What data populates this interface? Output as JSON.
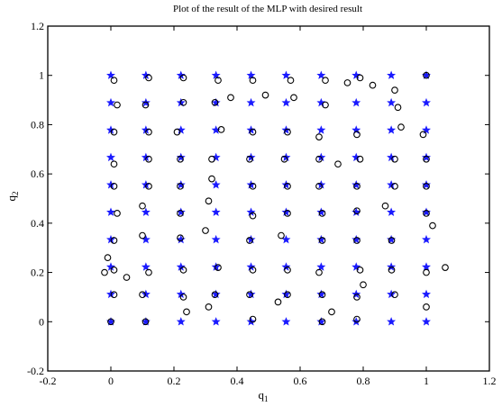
{
  "chart_data": {
    "type": "scatter",
    "title": "Plot of the result of the MLP with desired result",
    "xlabel": {
      "base": "q",
      "sub": "1"
    },
    "ylabel": {
      "base": "q",
      "sub": "2"
    },
    "xlim": [
      -0.2,
      1.2
    ],
    "ylim": [
      -0.2,
      1.2
    ],
    "xticks": [
      -0.2,
      0,
      0.2,
      0.4,
      0.6,
      0.8,
      1,
      1.2
    ],
    "yticks": [
      -0.2,
      0,
      0.2,
      0.4,
      0.6,
      0.8,
      1,
      1.2
    ],
    "xtick_labels": [
      "-0.2",
      "0",
      "0.2",
      "0.4",
      "0.6",
      "0.8",
      "1",
      "1.2"
    ],
    "ytick_labels": [
      "-0.2",
      "0",
      "0.2",
      "0.4",
      "0.6",
      "0.8",
      "1",
      "1.2"
    ],
    "grid": false,
    "legend": "none",
    "series": [
      {
        "marker": "star",
        "color": "#1a1aff",
        "x_values": [
          0,
          0.1111,
          0.2222,
          0.3333,
          0.4444,
          0.5556,
          0.6667,
          0.7778,
          0.8889,
          1
        ],
        "y_values": [
          0,
          0.1111,
          0.2222,
          0.3333,
          0.4444,
          0.5556,
          0.6667,
          0.7778,
          0.8889,
          1
        ],
        "layout": "grid"
      },
      {
        "marker": "open-circle",
        "color": "#000000",
        "points": [
          [
            0.01,
            0.98
          ],
          [
            0.12,
            0.99
          ],
          [
            0.23,
            0.99
          ],
          [
            0.34,
            0.98
          ],
          [
            0.45,
            0.98
          ],
          [
            0.57,
            0.98
          ],
          [
            0.68,
            0.98
          ],
          [
            0.79,
            0.99
          ],
          [
            0.9,
            0.94
          ],
          [
            1.0,
            1.0
          ],
          [
            0.02,
            0.88
          ],
          [
            0.11,
            0.88
          ],
          [
            0.23,
            0.89
          ],
          [
            0.33,
            0.89
          ],
          [
            0.38,
            0.91
          ],
          [
            0.49,
            0.92
          ],
          [
            0.58,
            0.91
          ],
          [
            0.68,
            0.88
          ],
          [
            0.75,
            0.97
          ],
          [
            0.83,
            0.96
          ],
          [
            0.91,
            0.87
          ],
          [
            0.01,
            0.77
          ],
          [
            0.12,
            0.77
          ],
          [
            0.21,
            0.77
          ],
          [
            0.35,
            0.78
          ],
          [
            0.45,
            0.77
          ],
          [
            0.56,
            0.77
          ],
          [
            0.66,
            0.75
          ],
          [
            0.78,
            0.76
          ],
          [
            0.92,
            0.79
          ],
          [
            0.99,
            0.76
          ],
          [
            0.01,
            0.64
          ],
          [
            0.12,
            0.66
          ],
          [
            0.22,
            0.66
          ],
          [
            0.32,
            0.66
          ],
          [
            0.44,
            0.66
          ],
          [
            0.55,
            0.66
          ],
          [
            0.66,
            0.66
          ],
          [
            0.72,
            0.64
          ],
          [
            0.79,
            0.66
          ],
          [
            0.9,
            0.66
          ],
          [
            1.0,
            0.66
          ],
          [
            0.01,
            0.55
          ],
          [
            0.12,
            0.55
          ],
          [
            0.22,
            0.55
          ],
          [
            0.32,
            0.58
          ],
          [
            0.45,
            0.55
          ],
          [
            0.56,
            0.55
          ],
          [
            0.66,
            0.55
          ],
          [
            0.78,
            0.55
          ],
          [
            0.9,
            0.55
          ],
          [
            1.0,
            0.55
          ],
          [
            0.02,
            0.44
          ],
          [
            0.1,
            0.47
          ],
          [
            0.22,
            0.44
          ],
          [
            0.31,
            0.49
          ],
          [
            0.45,
            0.43
          ],
          [
            0.56,
            0.44
          ],
          [
            0.67,
            0.44
          ],
          [
            0.78,
            0.45
          ],
          [
            0.87,
            0.47
          ],
          [
            1.0,
            0.44
          ],
          [
            0.01,
            0.33
          ],
          [
            0.1,
            0.35
          ],
          [
            0.22,
            0.34
          ],
          [
            0.3,
            0.37
          ],
          [
            0.44,
            0.33
          ],
          [
            0.54,
            0.35
          ],
          [
            0.67,
            0.33
          ],
          [
            0.78,
            0.33
          ],
          [
            0.89,
            0.33
          ],
          [
            1.02,
            0.39
          ],
          [
            -0.01,
            0.26
          ],
          [
            -0.02,
            0.2
          ],
          [
            0.01,
            0.21
          ],
          [
            0.05,
            0.18
          ],
          [
            0.12,
            0.2
          ],
          [
            0.23,
            0.21
          ],
          [
            0.34,
            0.22
          ],
          [
            0.45,
            0.21
          ],
          [
            0.56,
            0.21
          ],
          [
            0.66,
            0.2
          ],
          [
            0.79,
            0.21
          ],
          [
            0.89,
            0.21
          ],
          [
            1.06,
            0.22
          ],
          [
            1.0,
            0.2
          ],
          [
            0.01,
            0.11
          ],
          [
            0.1,
            0.11
          ],
          [
            0.23,
            0.1
          ],
          [
            0.33,
            0.11
          ],
          [
            0.44,
            0.11
          ],
          [
            0.56,
            0.11
          ],
          [
            0.67,
            0.11
          ],
          [
            0.8,
            0.15
          ],
          [
            0.78,
            0.1
          ],
          [
            0.9,
            0.11
          ],
          [
            0.0,
            0.0
          ],
          [
            0.11,
            0.0
          ],
          [
            0.24,
            0.04
          ],
          [
            0.31,
            0.06
          ],
          [
            0.45,
            0.01
          ],
          [
            0.53,
            0.08
          ],
          [
            0.67,
            0.0
          ],
          [
            0.7,
            0.04
          ],
          [
            0.78,
            0.01
          ],
          [
            1.0,
            0.06
          ]
        ]
      }
    ]
  }
}
